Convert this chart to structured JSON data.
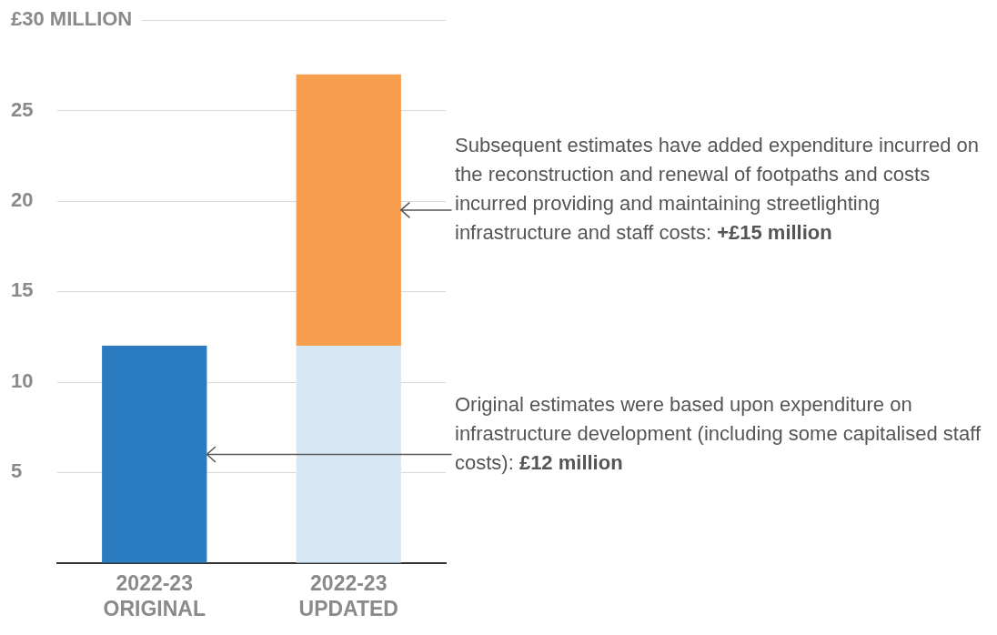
{
  "chart_data": {
    "type": "bar",
    "stacked": true,
    "categories": [
      "2022-23 ORIGINAL",
      "2022-23 UPDATED"
    ],
    "series": [
      {
        "values": [
          12,
          12
        ],
        "colors": [
          "#2a7bc0",
          "#d7e8f4"
        ]
      },
      {
        "values": [
          null,
          15
        ],
        "color": "#f79e4f"
      }
    ],
    "ylim": [
      0,
      30
    ],
    "yticks": [
      5,
      10,
      15,
      20,
      25,
      {
        "value": 30,
        "label": "£30 MILLION"
      }
    ],
    "grid": "y",
    "legend": false,
    "annotations": [
      {
        "text": "Subsequent estimates have added expenditure incurred on the reconstruction and renewal of footpaths and costs incurred providing and maintaining streetlighting infrastructure and staff costs: +£15 million"
      },
      {
        "text": "Original estimates were based upon expenditure on infrastructure development (including some capitalised staff costs): £12 million"
      }
    ]
  }
}
